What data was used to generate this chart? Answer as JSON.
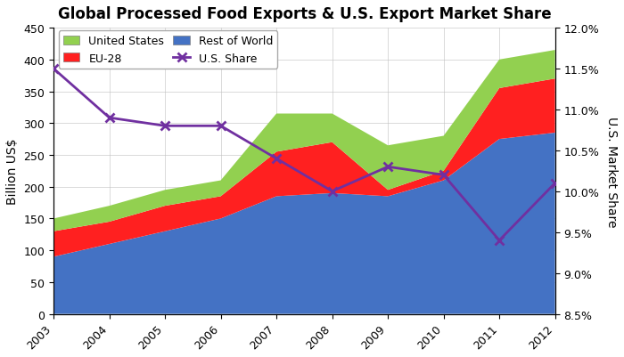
{
  "years": [
    2003,
    2004,
    2005,
    2006,
    2007,
    2008,
    2009,
    2010,
    2011,
    2012
  ],
  "rest_of_world": [
    90,
    110,
    130,
    150,
    185,
    190,
    185,
    210,
    275,
    285
  ],
  "eu28": [
    40,
    35,
    40,
    35,
    70,
    80,
    10,
    15,
    80,
    85
  ],
  "united_states": [
    20,
    25,
    25,
    25,
    60,
    45,
    70,
    55,
    45,
    45
  ],
  "us_share": [
    11.5,
    10.9,
    10.8,
    10.8,
    10.4,
    10.0,
    10.3,
    10.2,
    9.4,
    10.1
  ],
  "title": "Global Processed Food Exports & U.S. Export Market Share",
  "ylabel_left": "Billion US$",
  "ylabel_right": "U.S. Market Share",
  "ylim_left": [
    0,
    450
  ],
  "ylim_right": [
    8.5,
    12.0
  ],
  "yticks_left": [
    0,
    50,
    100,
    150,
    200,
    250,
    300,
    350,
    400,
    450
  ],
  "yticks_right": [
    8.5,
    9.0,
    9.5,
    10.0,
    10.5,
    11.0,
    11.5,
    12.0
  ],
  "color_blue": "#4472C4",
  "color_red": "#FF2020",
  "color_green": "#92D050",
  "color_purple": "#7030A0",
  "figwidth": 7.0,
  "figheight": 4.02,
  "dpi": 100
}
